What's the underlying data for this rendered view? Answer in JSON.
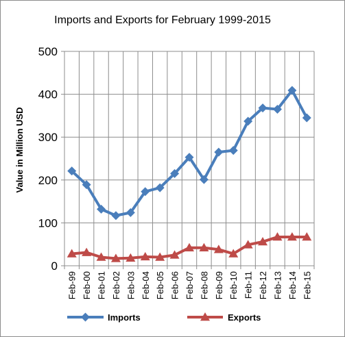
{
  "chart_data": {
    "type": "line",
    "title": "Imports and Exports for February 1999-2015",
    "xlabel": "",
    "ylabel": "Value in  Million  USD",
    "categories": [
      "Feb-99",
      "Feb-00",
      "Feb-01",
      "Feb-02",
      "Feb-03",
      "Feb-04",
      "Feb-05",
      "Feb-06",
      "Feb-07",
      "Feb-08",
      "Feb-09",
      "Feb-10",
      "Feb-11",
      "Feb-12",
      "Feb-13",
      "Feb-14",
      "Feb-15"
    ],
    "ylim": [
      0,
      500
    ],
    "yticks": [
      "0",
      "100",
      "200",
      "300",
      "400",
      "500"
    ],
    "grid": true,
    "legend_position": "bottom",
    "series": [
      {
        "name": "Imports",
        "color": "#4a7ebb",
        "marker": "diamond",
        "values": [
          221,
          189,
          132,
          117,
          124,
          173,
          182,
          215,
          253,
          201,
          265,
          269,
          337,
          368,
          365,
          409,
          345
        ]
      },
      {
        "name": "Exports",
        "color": "#be4b48",
        "marker": "triangle",
        "values": [
          28,
          31,
          20,
          17,
          18,
          21,
          20,
          25,
          42,
          42,
          38,
          28,
          49,
          56,
          67,
          67,
          67
        ]
      }
    ]
  }
}
